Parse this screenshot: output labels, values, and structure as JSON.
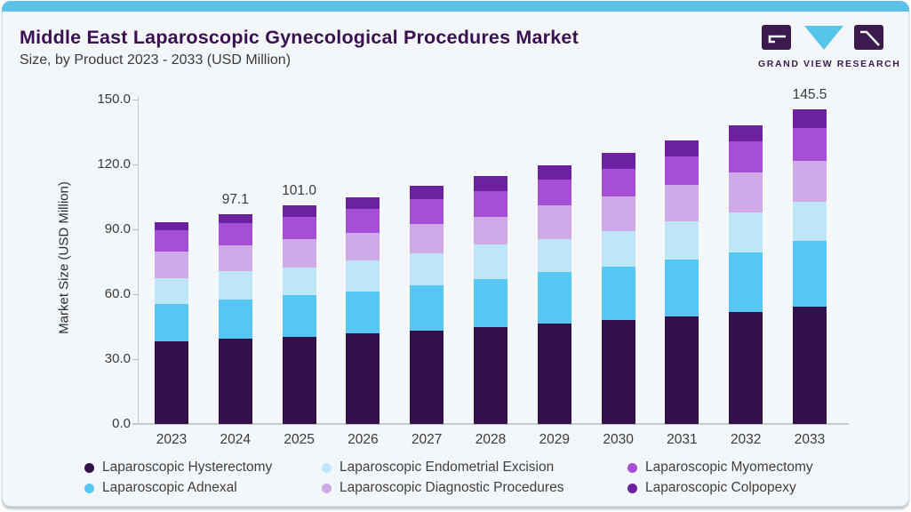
{
  "header": {
    "title": "Middle East Laparoscopic Gynecological Procedures Market",
    "subtitle": "Size, by Product 2023 - 2033 (USD Million)",
    "title_color": "#3B1053"
  },
  "logo": {
    "wordmark": "GRAND VIEW RESEARCH",
    "mark_dark_color": "#3B1A4E",
    "mark_cyan_color": "#56C5EA"
  },
  "theme": {
    "accent_bar_color": "#5BC2E7",
    "card_background": "#F3F7FA",
    "axis_line_color": "#C4CAD1"
  },
  "chart_data": {
    "type": "bar",
    "stacked": true,
    "title": "Middle East Laparoscopic Gynecological Procedures Market",
    "subtitle": "Size, by Product 2023 - 2033 (USD Million)",
    "ylabel": "Market Size (USD Million)",
    "xlabel": "",
    "ylim": [
      0,
      150
    ],
    "ytick_labels": [
      "0.0",
      "30.0",
      "60.0",
      "90.0",
      "120.0",
      "150.0"
    ],
    "ytick_values": [
      0,
      30,
      60,
      90,
      120,
      150
    ],
    "grid": false,
    "legend_position": "bottom",
    "categories": [
      "2023",
      "2024",
      "2025",
      "2026",
      "2027",
      "2028",
      "2029",
      "2030",
      "2031",
      "2032",
      "2033"
    ],
    "series": [
      {
        "name": "Laparoscopic Hysterectomy",
        "color": "#32114A",
        "values": [
          38.4,
          39.6,
          40.4,
          41.8,
          43.2,
          44.8,
          46.6,
          48.0,
          49.6,
          51.7,
          54.4
        ]
      },
      {
        "name": "Laparoscopic Adnexal",
        "color": "#56C7F2",
        "values": [
          17.1,
          17.8,
          19.1,
          19.4,
          20.8,
          22.3,
          23.5,
          24.6,
          26.4,
          27.8,
          30.1
        ]
      },
      {
        "name": "Laparoscopic Endometrial Excision",
        "color": "#BEE6F8",
        "values": [
          12.1,
          13.4,
          13.0,
          14.5,
          15.1,
          16.0,
          15.5,
          16.4,
          17.8,
          18.5,
          18.3
        ]
      },
      {
        "name": "Laparoscopic Diagnostic Procedures",
        "color": "#CFA9E8",
        "values": [
          12.3,
          12.0,
          13.0,
          12.8,
          13.4,
          12.7,
          15.4,
          16.4,
          16.8,
          18.5,
          18.7
        ]
      },
      {
        "name": "Laparoscopic Myomectomy",
        "color": "#A44FD6",
        "values": [
          9.8,
          10.1,
          10.3,
          11.0,
          11.4,
          11.9,
          11.9,
          12.6,
          13.2,
          14.4,
          15.5
        ]
      },
      {
        "name": "Laparoscopic Colpopexy",
        "color": "#6B21A0",
        "values": [
          3.7,
          4.2,
          5.2,
          5.5,
          6.2,
          6.8,
          6.9,
          7.2,
          7.3,
          7.2,
          8.5
        ]
      }
    ],
    "totals": [
      93.4,
      97.1,
      101.0,
      105.0,
      110.1,
      114.5,
      119.8,
      125.2,
      131.1,
      138.1,
      145.5
    ],
    "bar_labels": {
      "2024": "97.1",
      "2025": "101.0",
      "2033": "145.5"
    },
    "legend_order": [
      "Laparoscopic Hysterectomy",
      "Laparoscopic Endometrial Excision",
      "Laparoscopic Myomectomy",
      "Laparoscopic Adnexal",
      "Laparoscopic Diagnostic Procedures",
      "Laparoscopic Colpopexy"
    ]
  }
}
